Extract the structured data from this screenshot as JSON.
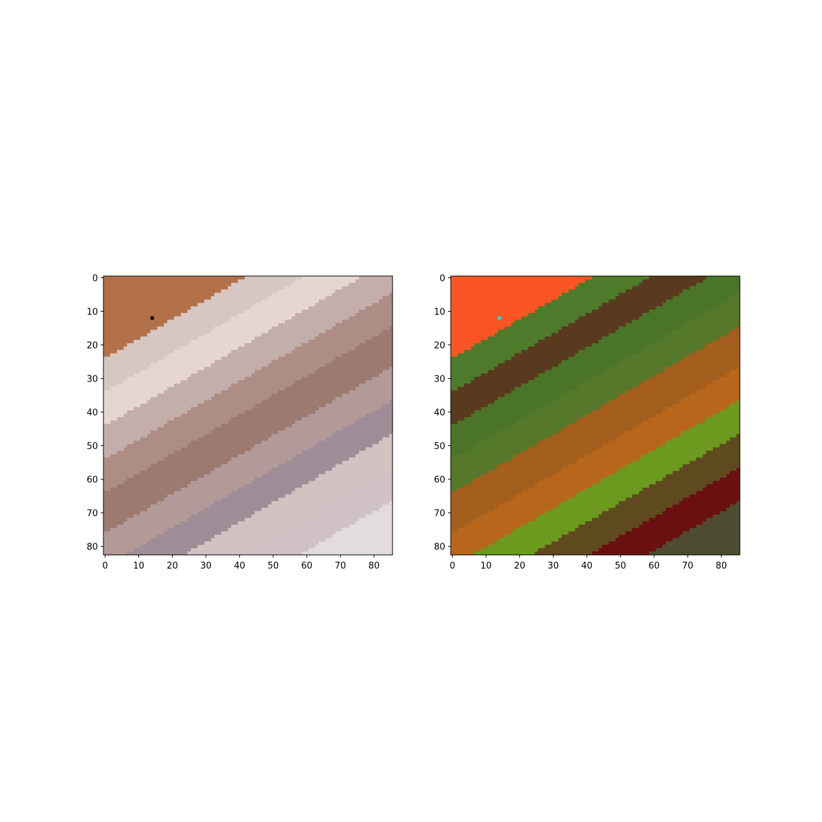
{
  "chart_data": [
    {
      "type": "heatmap",
      "title": "",
      "xlabel": "",
      "ylabel": "",
      "xlim": [
        -0.5,
        85.5
      ],
      "ylim": [
        82.5,
        -0.5
      ],
      "x_ticks": [
        0,
        10,
        20,
        30,
        40,
        50,
        60,
        70,
        80
      ],
      "y_ticks": [
        0,
        10,
        20,
        30,
        40,
        50,
        60,
        70,
        80
      ],
      "grid": false,
      "image_width": 86,
      "image_height": 83,
      "palette": {
        "background": "#b3714a",
        "bands": [
          "#d7c7c2",
          "#e6d6d2",
          "#c4aeab",
          "#ae8d84",
          "#9c7a70",
          "#b39a98",
          "#9e8c97",
          "#d3c2c2",
          "#cfc1c4",
          "#e2dcdf"
        ]
      },
      "marker": {
        "x": 14,
        "y": 12,
        "color": "#000000"
      }
    },
    {
      "type": "heatmap",
      "title": "",
      "xlabel": "",
      "ylabel": "",
      "xlim": [
        -0.5,
        85.5
      ],
      "ylim": [
        82.5,
        -0.5
      ],
      "x_ticks": [
        0,
        10,
        20,
        30,
        40,
        50,
        60,
        70,
        80
      ],
      "y_ticks": [
        0,
        10,
        20,
        30,
        40,
        50,
        60,
        70,
        80
      ],
      "grid": false,
      "image_width": 86,
      "image_height": 83,
      "palette": {
        "background": "#fa5522",
        "bands": [
          "#4e7a2c",
          "#5a3a1e",
          "#4a7428",
          "#55782a",
          "#a45e1d",
          "#b8661c",
          "#6c9a1e",
          "#5f4a1f",
          "#6a1010",
          "#4e4c30"
        ]
      },
      "marker": {
        "x": 14,
        "y": 12,
        "color": "#22d6e8"
      }
    }
  ]
}
